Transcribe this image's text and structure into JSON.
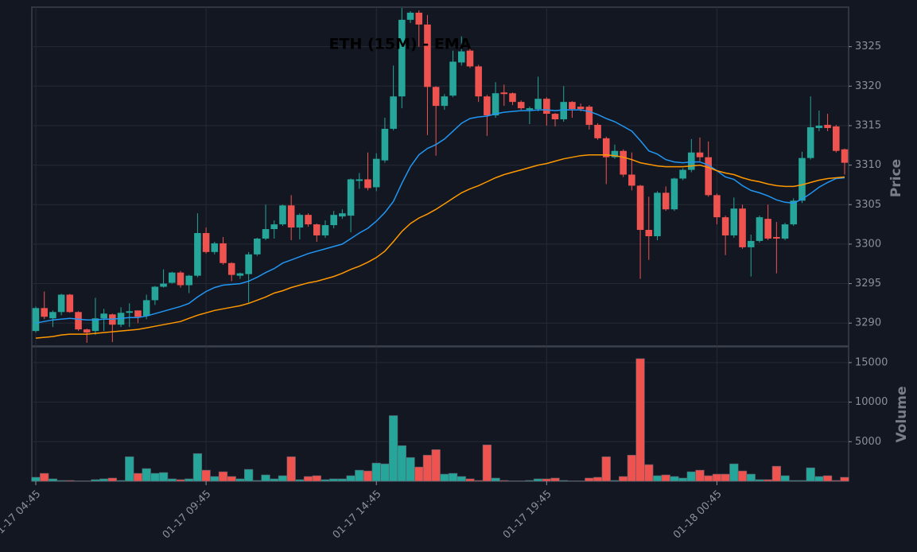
{
  "chart_data": {
    "type": "candlestick",
    "title": "ETH (15M) - EMA",
    "ylabel": "Price",
    "categories": [
      "01-17 04:45",
      null,
      null,
      null,
      null,
      null,
      null,
      null,
      null,
      null,
      null,
      null,
      null,
      null,
      null,
      null,
      null,
      null,
      null,
      null,
      "01-17 09:45",
      null,
      null,
      null,
      null,
      null,
      null,
      null,
      null,
      null,
      null,
      null,
      null,
      null,
      null,
      null,
      null,
      null,
      null,
      null,
      "01-17 14:45",
      null,
      null,
      null,
      null,
      null,
      null,
      null,
      null,
      null,
      null,
      null,
      null,
      null,
      null,
      null,
      null,
      null,
      null,
      null,
      "01-17 19:45",
      null,
      null,
      null,
      null,
      null,
      null,
      null,
      null,
      null,
      null,
      null,
      null,
      null,
      null,
      null,
      null,
      null,
      null,
      null,
      "01-18 00:45",
      null,
      null,
      null,
      null,
      null,
      null,
      null,
      null,
      null,
      null,
      null,
      null,
      null,
      null,
      null
    ],
    "open": [
      3289.0,
      3291.9,
      3290.6,
      3291.4,
      3293.6,
      3291.4,
      3289.2,
      3289.0,
      3290.6,
      3291.1,
      3289.8,
      3291.3,
      3291.6,
      3290.9,
      3292.9,
      3294.6,
      3295.1,
      3296.4,
      3294.8,
      3296.0,
      3301.4,
      3299.0,
      3300.1,
      3297.6,
      3296.0,
      3296.2,
      3298.7,
      3300.7,
      3301.9,
      3302.5,
      3304.9,
      3302.1,
      3303.7,
      3302.5,
      3301.1,
      3302.4,
      3303.5,
      3303.6,
      3308.0,
      3308.2,
      3307.2,
      3310.6,
      3314.6,
      3318.7,
      3328.4,
      3329.3,
      3327.8,
      3319.9,
      3317.5,
      3318.8,
      3323.0,
      3324.5,
      3322.5,
      3318.7,
      3316.3,
      3319.2,
      3319.1,
      3318.0,
      3317.0,
      3317.1,
      3318.4,
      3316.5,
      3315.8,
      3318.0,
      3317.4,
      3317.4,
      3315.1,
      3313.4,
      3311.0,
      3311.8,
      3308.8,
      3307.4,
      3301.8,
      3301.0,
      3306.5,
      3304.4,
      3308.3,
      3309.4,
      3311.6,
      3311.0,
      3306.2,
      3303.4,
      3301.1,
      3304.5,
      3299.6,
      3300.4,
      3303.2,
      3300.9,
      3300.7,
      3302.5,
      3305.5,
      3310.9,
      3314.7,
      3315.1,
      3314.9,
      3312.0
    ],
    "high": [
      3292.1,
      3294.0,
      3291.6,
      3293.7,
      3293.7,
      3291.5,
      3289.3,
      3293.2,
      3291.8,
      3291.2,
      3292.0,
      3292.5,
      3291.6,
      3293.6,
      3294.7,
      3296.8,
      3296.5,
      3296.6,
      3296.1,
      3303.9,
      3302.1,
      3300.3,
      3300.9,
      3297.7,
      3296.4,
      3299.0,
      3300.8,
      3305.0,
      3303.0,
      3305.0,
      3306.2,
      3303.9,
      3303.9,
      3302.6,
      3303.0,
      3304.2,
      3304.4,
      3308.3,
      3309.0,
      3311.6,
      3311.5,
      3316.0,
      3322.6,
      3329.9,
      3329.5,
      3329.6,
      3329.0,
      3320.0,
      3319.0,
      3324.5,
      3326.3,
      3324.8,
      3322.7,
      3318.9,
      3320.5,
      3320.2,
      3319.2,
      3318.2,
      3317.4,
      3321.2,
      3318.6,
      3316.6,
      3320.0,
      3318.1,
      3317.8,
      3317.6,
      3315.3,
      3313.6,
      3312.6,
      3312.0,
      3311.6,
      3307.5,
      3306.0,
      3306.7,
      3307.3,
      3308.4,
      3309.6,
      3313.3,
      3313.5,
      3313.0,
      3306.4,
      3303.6,
      3305.9,
      3305.0,
      3301.2,
      3303.6,
      3305.0,
      3302.8,
      3302.7,
      3305.8,
      3311.7,
      3318.7,
      3316.9,
      3316.5,
      3315.1,
      3312.1
    ],
    "low": [
      3288.8,
      3290.5,
      3289.5,
      3291.0,
      3291.3,
      3289.0,
      3287.5,
      3288.5,
      3289.0,
      3287.6,
      3289.5,
      3289.5,
      3290.0,
      3290.5,
      3292.3,
      3294.5,
      3295.0,
      3294.5,
      3293.8,
      3295.8,
      3298.8,
      3298.7,
      3297.4,
      3295.3,
      3295.6,
      3292.6,
      3298.5,
      3300.5,
      3300.7,
      3302.3,
      3300.5,
      3300.6,
      3302.2,
      3300.3,
      3300.8,
      3302.0,
      3303.2,
      3301.5,
      3307.0,
      3306.8,
      3306.7,
      3310.3,
      3314.4,
      3317.2,
      3328.0,
      3325.0,
      3313.8,
      3311.2,
      3317.0,
      3318.6,
      3322.6,
      3322.3,
      3318.0,
      3313.7,
      3316.0,
      3317.5,
      3317.6,
      3317.0,
      3315.2,
      3316.8,
      3315.0,
      3314.9,
      3315.5,
      3316.0,
      3316.8,
      3314.5,
      3313.2,
      3307.6,
      3310.8,
      3308.5,
      3306.8,
      3295.6,
      3298.0,
      3300.5,
      3304.2,
      3304.2,
      3308.1,
      3309.1,
      3310.5,
      3306.0,
      3302.5,
      3298.6,
      3300.8,
      3299.4,
      3295.9,
      3300.2,
      3300.5,
      3296.3,
      3300.5,
      3302.3,
      3305.2,
      3310.7,
      3314.3,
      3314.3,
      3311.6,
      3308.8
    ],
    "close": [
      3291.9,
      3290.8,
      3291.4,
      3293.6,
      3291.4,
      3289.2,
      3288.8,
      3290.6,
      3291.2,
      3289.8,
      3291.3,
      3291.5,
      3290.8,
      3292.9,
      3294.6,
      3295.0,
      3296.4,
      3294.8,
      3296.0,
      3301.4,
      3299.0,
      3300.1,
      3297.6,
      3296.1,
      3296.3,
      3298.7,
      3300.7,
      3301.9,
      3302.5,
      3304.9,
      3302.1,
      3303.7,
      3302.5,
      3301.1,
      3302.4,
      3303.7,
      3303.9,
      3308.2,
      3308.2,
      3307.1,
      3310.8,
      3314.6,
      3318.7,
      3328.4,
      3329.3,
      3327.8,
      3319.9,
      3317.5,
      3318.7,
      3323.1,
      3324.4,
      3322.5,
      3318.7,
      3316.3,
      3319.1,
      3319.0,
      3318.0,
      3317.2,
      3317.2,
      3318.4,
      3316.5,
      3315.8,
      3318.0,
      3317.1,
      3317.1,
      3315.1,
      3313.4,
      3311.0,
      3311.8,
      3308.8,
      3307.4,
      3301.8,
      3301.0,
      3306.5,
      3304.4,
      3308.3,
      3309.4,
      3311.6,
      3311.0,
      3306.2,
      3303.4,
      3301.1,
      3304.5,
      3299.6,
      3300.4,
      3303.4,
      3300.7,
      3300.7,
      3302.5,
      3305.5,
      3310.9,
      3314.8,
      3315.0,
      3314.7,
      3311.8,
      3310.3
    ],
    "up_color": "#26a69a",
    "down_color": "#ef5350",
    "series": [
      {
        "color": "#2196f3",
        "values": [
          3290.0,
          3290.2,
          3290.4,
          3290.5,
          3290.6,
          3290.5,
          3290.4,
          3290.4,
          3290.5,
          3290.5,
          3290.6,
          3290.7,
          3290.7,
          3290.9,
          3291.2,
          3291.5,
          3291.8,
          3292.1,
          3292.5,
          3293.3,
          3294.0,
          3294.5,
          3294.8,
          3294.9,
          3295.0,
          3295.3,
          3295.8,
          3296.4,
          3296.9,
          3297.6,
          3298.0,
          3298.4,
          3298.8,
          3299.1,
          3299.4,
          3299.7,
          3300.0,
          3300.7,
          3301.4,
          3302.0,
          3302.9,
          3304.0,
          3305.4,
          3307.7,
          3309.8,
          3311.3,
          3312.1,
          3312.6,
          3313.3,
          3314.3,
          3315.3,
          3315.9,
          3316.1,
          3316.2,
          3316.5,
          3316.7,
          3316.8,
          3316.9,
          3316.9,
          3317.0,
          3317.0,
          3316.9,
          3317.0,
          3317.0,
          3317.0,
          3316.8,
          3316.4,
          3315.9,
          3315.5,
          3314.9,
          3314.3,
          3313.1,
          3311.8,
          3311.4,
          3310.7,
          3310.4,
          3310.3,
          3310.4,
          3310.4,
          3310.0,
          3309.3,
          3308.5,
          3308.2,
          3307.4,
          3306.8,
          3306.5,
          3306.1,
          3305.6,
          3305.3,
          3305.2,
          3305.7,
          3306.4,
          3307.2,
          3307.8,
          3308.3,
          3308.4
        ]
      },
      {
        "color": "#ff9800",
        "values": [
          3288.1,
          3288.2,
          3288.3,
          3288.5,
          3288.6,
          3288.6,
          3288.6,
          3288.7,
          3288.8,
          3288.9,
          3289.0,
          3289.1,
          3289.2,
          3289.4,
          3289.6,
          3289.8,
          3290.0,
          3290.2,
          3290.6,
          3291.0,
          3291.3,
          3291.6,
          3291.8,
          3292.0,
          3292.2,
          3292.5,
          3292.9,
          3293.3,
          3293.8,
          3294.1,
          3294.5,
          3294.8,
          3295.1,
          3295.3,
          3295.6,
          3295.9,
          3296.3,
          3296.8,
          3297.2,
          3297.7,
          3298.3,
          3299.1,
          3300.3,
          3301.6,
          3302.6,
          3303.3,
          3303.8,
          3304.4,
          3305.1,
          3305.8,
          3306.5,
          3307.0,
          3307.4,
          3307.9,
          3308.4,
          3308.8,
          3309.1,
          3309.4,
          3309.7,
          3310.0,
          3310.2,
          3310.5,
          3310.8,
          3311.0,
          3311.2,
          3311.3,
          3311.3,
          3311.3,
          3311.2,
          3311.0,
          3310.7,
          3310.3,
          3310.1,
          3309.9,
          3309.8,
          3309.8,
          3309.8,
          3309.9,
          3310.0,
          3309.7,
          3309.3,
          3309.0,
          3308.8,
          3308.4,
          3308.1,
          3307.9,
          3307.6,
          3307.4,
          3307.3,
          3307.3,
          3307.5,
          3307.8,
          3308.1,
          3308.3,
          3308.4,
          3308.5
        ]
      }
    ],
    "ylim": [
      3287.1,
      3330.0
    ],
    "yticks": [
      3290,
      3295,
      3300,
      3305,
      3310,
      3315,
      3320,
      3325
    ],
    "grid": true,
    "volume": {
      "type": "bar",
      "ylabel": "Volume",
      "values": [
        500,
        1000,
        300,
        100,
        100,
        50,
        50,
        200,
        300,
        400,
        100,
        3100,
        1000,
        1600,
        1000,
        1100,
        300,
        200,
        300,
        3500,
        1400,
        600,
        1200,
        600,
        300,
        1500,
        100,
        800,
        300,
        700,
        3100,
        200,
        600,
        700,
        200,
        300,
        300,
        700,
        1400,
        1300,
        2300,
        2200,
        8300,
        4500,
        3000,
        1800,
        3300,
        4000,
        900,
        1000,
        600,
        300,
        100,
        4600,
        400,
        100,
        50,
        50,
        100,
        300,
        300,
        400,
        100,
        50,
        50,
        400,
        500,
        3100,
        100,
        600,
        3300,
        15500,
        2100,
        700,
        800,
        600,
        400,
        1200,
        1400,
        700,
        900,
        900,
        2200,
        1300,
        900,
        200,
        200,
        1900,
        700,
        100,
        100,
        1700,
        600,
        700,
        100,
        500
      ],
      "ylim": [
        0,
        17000
      ],
      "yticks": [
        5000,
        10000,
        15000
      ]
    }
  }
}
